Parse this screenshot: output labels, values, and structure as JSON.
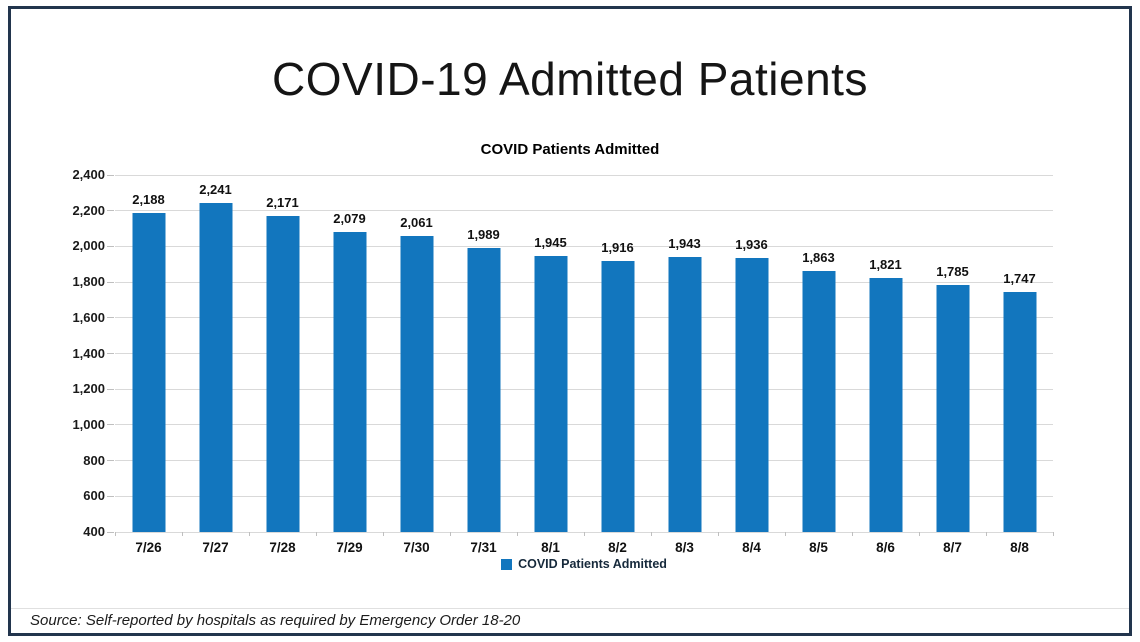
{
  "page": {
    "title": "COVID-19 Admitted Patients",
    "source_note": "Source: Self-reported by hospitals as required by Emergency Order 18-20",
    "background_color": "#ffffff",
    "frame_color": "#22354d"
  },
  "chart_data": {
    "type": "bar",
    "title": "COVID Patients Admitted",
    "categories": [
      "7/26",
      "7/27",
      "7/28",
      "7/29",
      "7/30",
      "7/31",
      "8/1",
      "8/2",
      "8/3",
      "8/4",
      "8/5",
      "8/6",
      "8/7",
      "8/8"
    ],
    "values": [
      2188,
      2241,
      2171,
      2079,
      2061,
      1989,
      1945,
      1916,
      1943,
      1936,
      1863,
      1821,
      1785,
      1747
    ],
    "value_labels": [
      "2,188",
      "2,241",
      "2,171",
      "2,079",
      "2,061",
      "1,989",
      "1,945",
      "1,916",
      "1,943",
      "1,936",
      "1,863",
      "1,821",
      "1,785",
      "1,747"
    ],
    "xlabel": "",
    "ylabel": "",
    "ylim": [
      400,
      2400
    ],
    "ytick_step": 200,
    "ytick_labels": [
      "400",
      "600",
      "800",
      "1,000",
      "1,200",
      "1,400",
      "1,600",
      "1,800",
      "2,000",
      "2,200",
      "2,400"
    ],
    "grid": true,
    "legend_position": "bottom",
    "legend": [
      {
        "label": "COVID Patients Admitted",
        "color": "#1276be"
      }
    ],
    "bar_color": "#1276be",
    "gridline_color": "#d9d9d9",
    "tick_color": "#bfbfbf",
    "label_color": "#111111"
  }
}
